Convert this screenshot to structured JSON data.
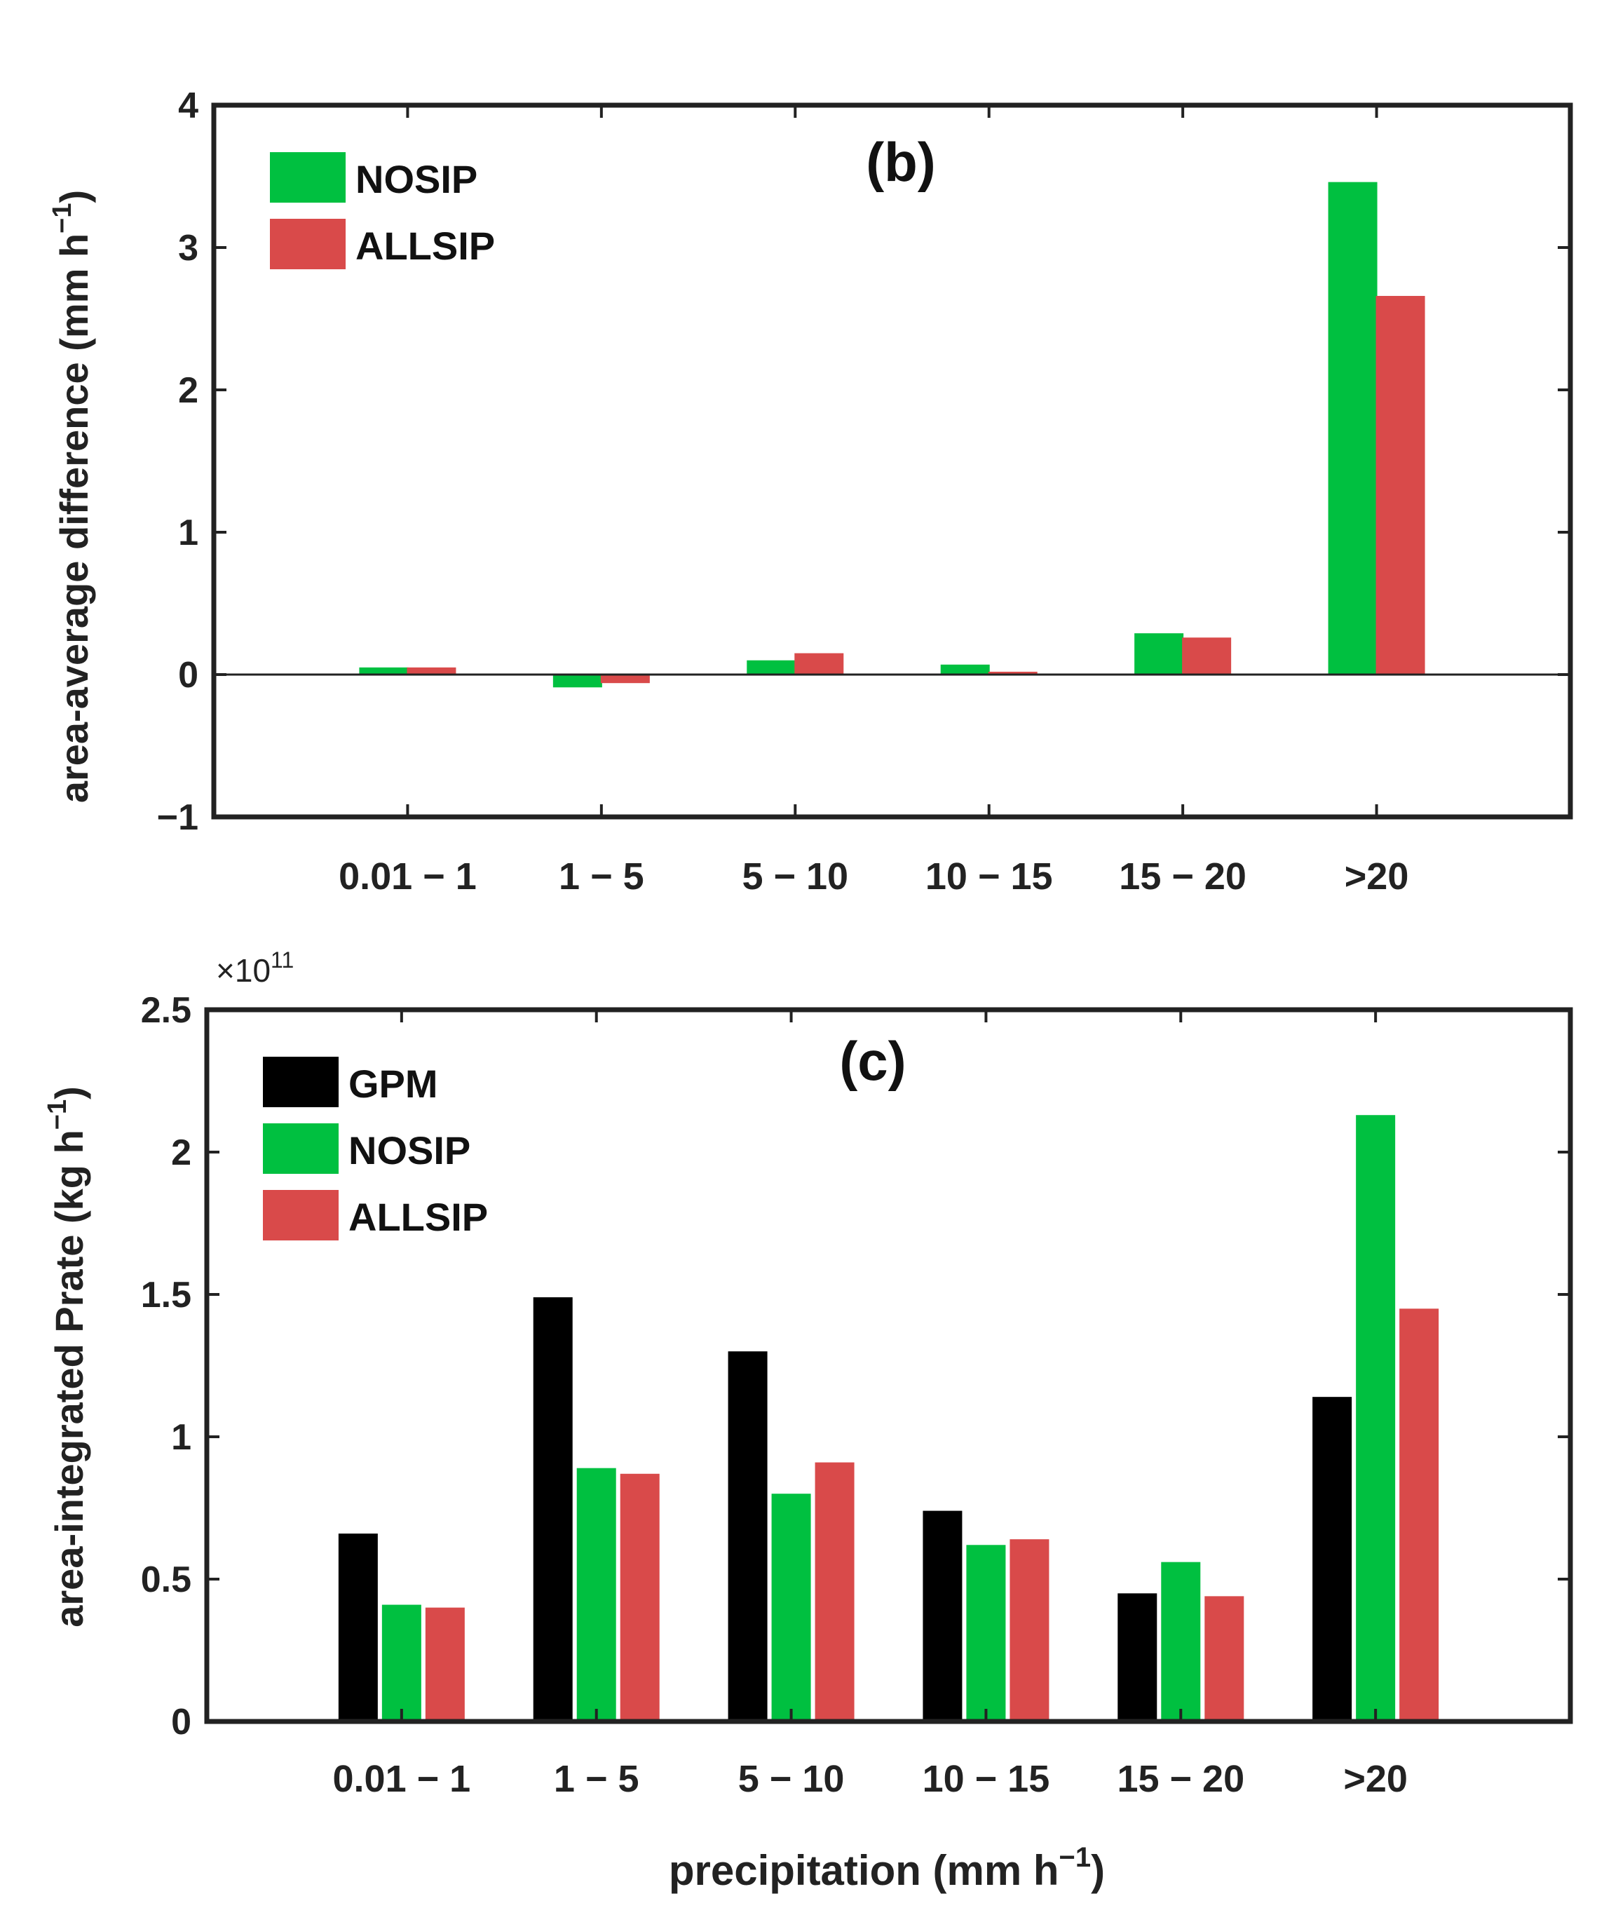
{
  "colors": {
    "GPM": "#000000",
    "NOSIP": "#00c040",
    "ALLSIP": "#d94a4a",
    "axis": "#222222"
  },
  "xlabel_text": "precipitation (mm h",
  "xlabel_sup": "−1",
  "xlabel_close": ")",
  "chart_data": [
    {
      "type": "bar",
      "panel": "(b)",
      "ylabel_text": "area-average difference (mm h",
      "ylabel_sup": "−1",
      "ylabel_close": ")",
      "categories": [
        "0.01 − 1",
        "1 − 5",
        "5 − 10",
        "10 − 15",
        "15 − 20",
        ">20"
      ],
      "ylim": [
        -1,
        4
      ],
      "yticks": [
        -1,
        0,
        1,
        2,
        3,
        4
      ],
      "ytick_labels": [
        "−1",
        "0",
        "1",
        "2",
        "3",
        "4"
      ],
      "zero_line": true,
      "legend": "top-left",
      "series": [
        {
          "name": "NOSIP",
          "values": [
            0.05,
            -0.09,
            0.1,
            0.07,
            0.29,
            3.46
          ]
        },
        {
          "name": "ALLSIP",
          "values": [
            0.05,
            -0.06,
            0.15,
            0.02,
            0.26,
            2.66
          ]
        }
      ]
    },
    {
      "type": "bar",
      "panel": "(c)",
      "ylabel_text": "area-integrated Prate (kg h",
      "ylabel_sup": "−1",
      "ylabel_close": ")",
      "multiplier_base": "×10",
      "multiplier_exp": "11",
      "categories": [
        "0.01 − 1",
        "1 − 5",
        "5 − 10",
        "10 − 15",
        "15 − 20",
        ">20"
      ],
      "ylim": [
        0,
        2.5
      ],
      "yticks": [
        0,
        0.5,
        1,
        1.5,
        2,
        2.5
      ],
      "ytick_labels": [
        "0",
        "0.5",
        "1",
        "1.5",
        "2",
        "2.5"
      ],
      "zero_line": false,
      "legend": "top-left",
      "series": [
        {
          "name": "GPM",
          "values": [
            0.66,
            1.49,
            1.3,
            0.74,
            0.45,
            1.14
          ]
        },
        {
          "name": "NOSIP",
          "values": [
            0.41,
            0.89,
            0.8,
            0.62,
            0.56,
            2.13
          ]
        },
        {
          "name": "ALLSIP",
          "values": [
            0.4,
            0.87,
            0.91,
            0.64,
            0.44,
            1.45
          ]
        }
      ]
    }
  ]
}
